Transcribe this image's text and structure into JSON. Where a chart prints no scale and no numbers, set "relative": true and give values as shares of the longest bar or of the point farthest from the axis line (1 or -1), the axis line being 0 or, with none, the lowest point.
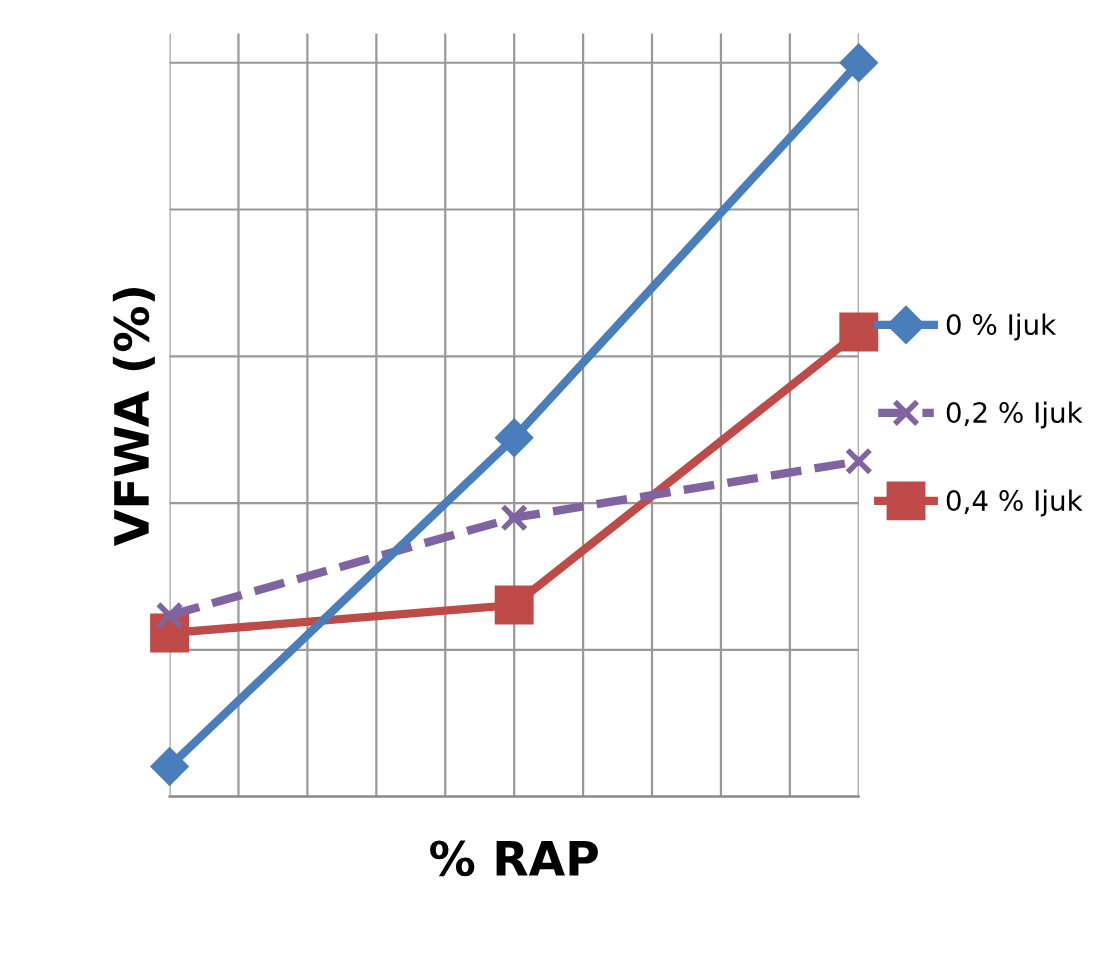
{
  "chart_data": {
    "type": "line",
    "xlabel": "% RAP",
    "ylabel": "VFWA (%)",
    "relative": true,
    "categories": [
      null,
      null,
      null
    ],
    "series": [
      {
        "name": "0 % Ijuk",
        "color": "#4a7ebb",
        "values": [
          0.041,
          0.489,
          1
        ],
        "marker": "diamond",
        "line_style": "solid"
      },
      {
        "name": "0,2 % Ijuk",
        "color": "#8064a2",
        "values": [
          0.247,
          0.38,
          0.457
        ],
        "marker": "cross",
        "line_style": "dashed"
      },
      {
        "name": "0,4 % Ijuk",
        "color": "#be4b48",
        "values": [
          0.223,
          0.261,
          0.633
        ],
        "marker": "square",
        "line_style": "solid"
      }
    ],
    "grid": true,
    "legend": "right"
  }
}
